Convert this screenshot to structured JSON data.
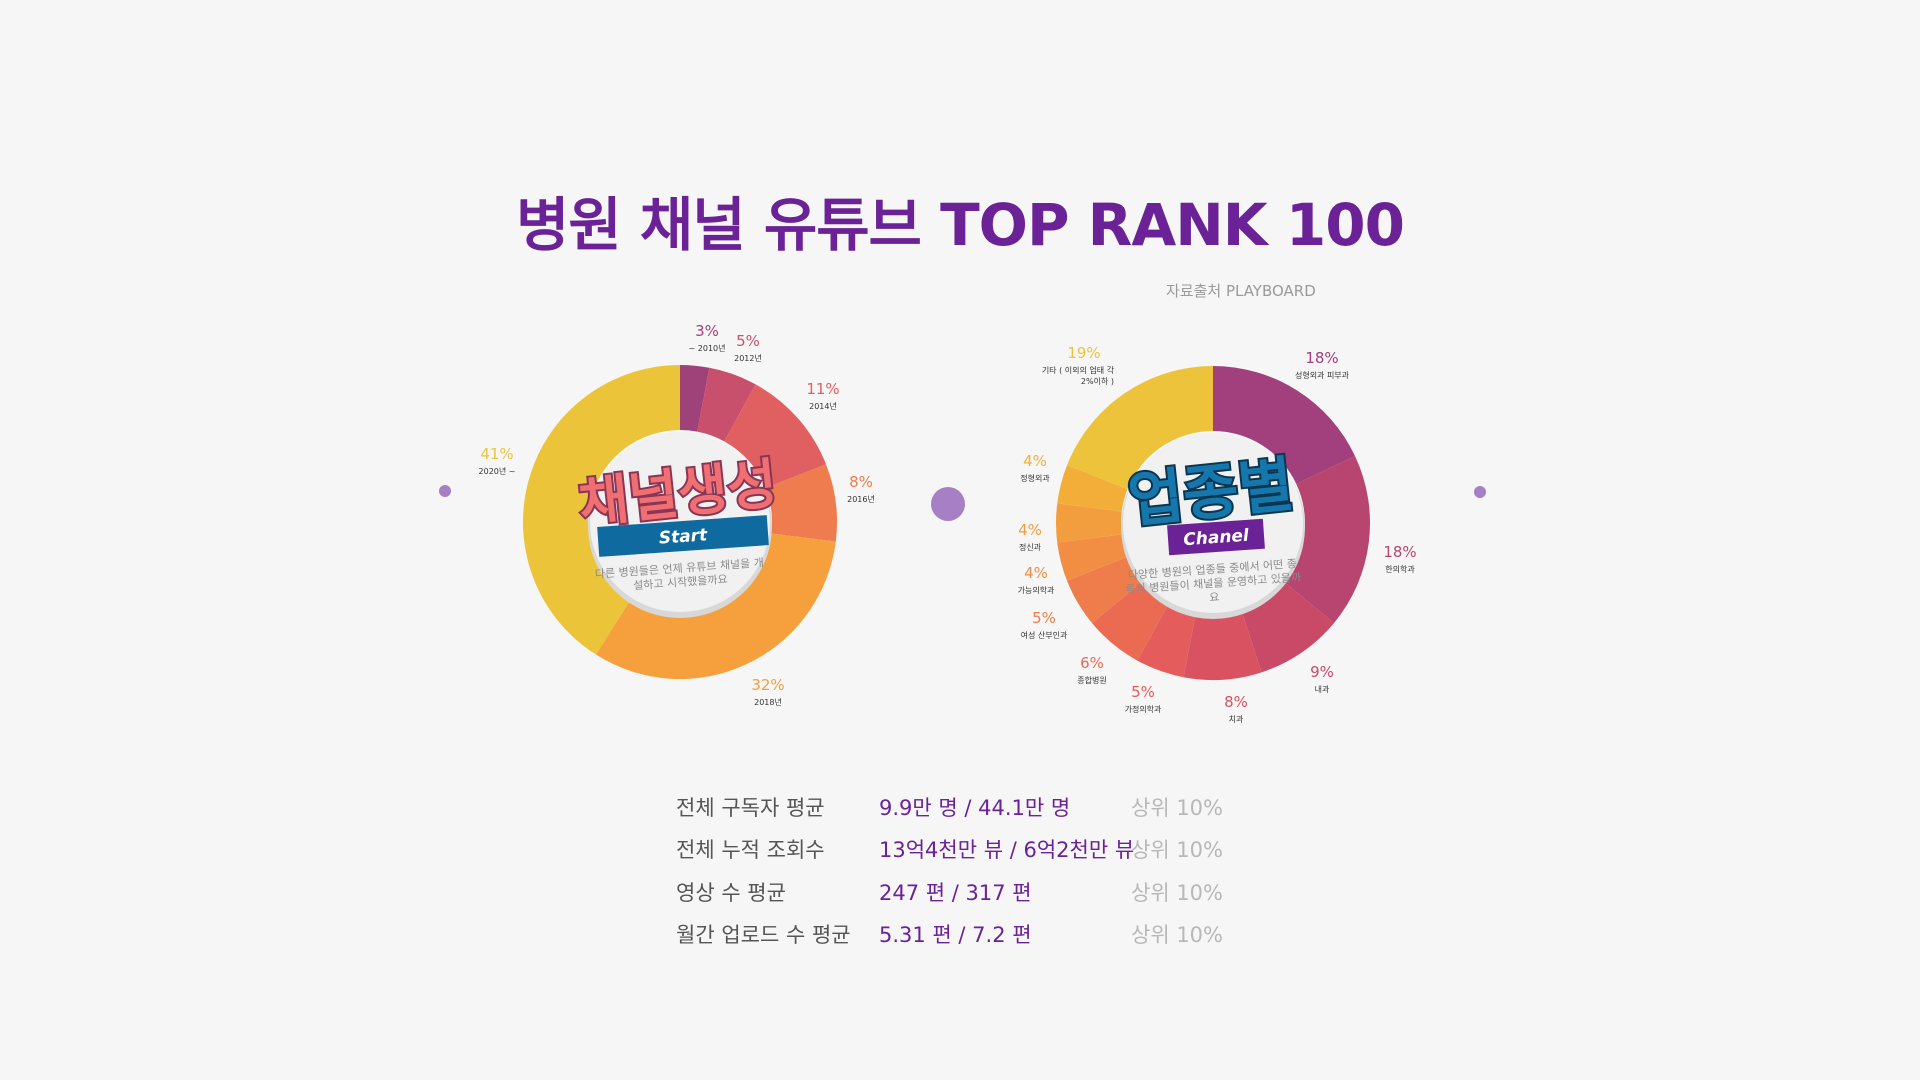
{
  "title": "병원 채널 유튜브 TOP RANK 100",
  "source": "자료출처 PLAYBOARD",
  "colors": {
    "title": "#6a2296",
    "accent_blue": "#0f6aa0",
    "accent_purple": "#6a2296"
  },
  "chart_data": [
    {
      "type": "pie",
      "center_title": "채널생성",
      "center_badge": "Start",
      "center_desc": [
        "다른 병원들은 언제 유튜브 채널을 개",
        "설하고 시작했을까요"
      ],
      "slices": [
        {
          "label": "~ 2010년",
          "value": 3,
          "display": "3%",
          "color": "#a0427a"
        },
        {
          "label": "2012년",
          "value": 5,
          "display": "5%",
          "color": "#c9506c"
        },
        {
          "label": "2014년",
          "value": 11,
          "display": "11%",
          "color": "#e05f61"
        },
        {
          "label": "2016년",
          "value": 8,
          "display": "8%",
          "color": "#ef7c4e"
        },
        {
          "label": "2018년",
          "value": 32,
          "display": "32%",
          "color": "#f5a03d"
        },
        {
          "label": "2020년 ~",
          "value": 41,
          "display": "41%",
          "color": "#ebc43a"
        }
      ]
    },
    {
      "type": "pie",
      "center_title": "업종별",
      "center_badge": "Chanel",
      "center_desc": [
        "다양한 병원의 업종들 중에서 어떤 종",
        "류의 병원들이 채널을 운영하고 있을까",
        "요"
      ],
      "slices": [
        {
          "label": "성형외과 피부과",
          "value": 18,
          "display": "18%",
          "color": "#a23f7d"
        },
        {
          "label": "한의학과",
          "value": 18,
          "display": "18%",
          "color": "#b7456f"
        },
        {
          "label": "내과",
          "value": 9,
          "display": "9%",
          "color": "#c84a67"
        },
        {
          "label": "치과",
          "value": 8,
          "display": "8%",
          "color": "#d85262"
        },
        {
          "label": "가정의학과",
          "value": 5,
          "display": "5%",
          "color": "#e45c5b"
        },
        {
          "label": "종합병원",
          "value": 6,
          "display": "6%",
          "color": "#eb6b52"
        },
        {
          "label": "여성 산부인과",
          "value": 5,
          "display": "5%",
          "color": "#ee7d4b"
        },
        {
          "label": "가능의학과",
          "value": 4,
          "display": "4%",
          "color": "#f18e44"
        },
        {
          "label": "정신과",
          "value": 4,
          "display": "4%",
          "color": "#f39e3e"
        },
        {
          "label": "정형외과",
          "value": 4,
          "display": "4%",
          "color": "#f3ae3a"
        },
        {
          "label": "기타 ( 이외의 업태 각 2%이하 )",
          "value": 19,
          "display": "19%",
          "color": "#ecc33b"
        }
      ]
    }
  ],
  "stats": [
    {
      "label": "전체 구독자 평균",
      "value": "9.9만 명  / 44.1만 명",
      "rank": "상위 10%"
    },
    {
      "label": "전체 누적 조회수",
      "value": "13억4천만 뷰 / 6억2천만 뷰",
      "rank": "상위 10%"
    },
    {
      "label": "영상 수 평균",
      "value": "247 편 / 317 편",
      "rank": "상위 10%"
    },
    {
      "label": "월간 업로드 수 평균",
      "value": "5.31 편 / 7.2 편",
      "rank": "상위 10%"
    }
  ]
}
